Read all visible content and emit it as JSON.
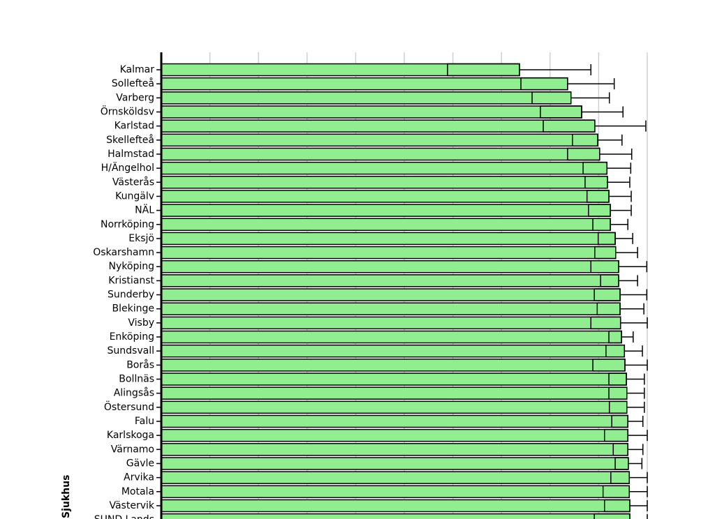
{
  "chart_data": {
    "type": "bar",
    "orientation": "horizontal",
    "y_label": "Sjukhus",
    "categories": [
      "Kalmar",
      "Sollefteå",
      "Varberg",
      "Örnsköldsv",
      "Karlstad",
      "Skellefteå",
      "Halmstad",
      "H/Ängelhol",
      "Västerås",
      "Kungälv",
      "NÄL",
      "Norrköping",
      "Eksjö",
      "Oskarshamn",
      "Nyköping",
      "Kristianst",
      "Sunderby",
      "Blekinge",
      "Visby",
      "Enköping",
      "Sundsvall",
      "Borås",
      "Bollnäs",
      "Alingsås",
      "Östersund",
      "Falu",
      "Karlskoga",
      "Värnamo",
      "Gävle",
      "Arvika",
      "Motala",
      "Västervik",
      "SUND Lands"
    ],
    "values": [
      73.7,
      83.6,
      84.3,
      86.5,
      89.2,
      89.8,
      90.2,
      91.7,
      91.8,
      92.1,
      92.4,
      92.4,
      93.4,
      93.5,
      94.1,
      94.1,
      94.4,
      94.4,
      94.5,
      94.7,
      95.3,
      95.4,
      95.7,
      95.8,
      95.8,
      96.0,
      96.0,
      96.0,
      96.1,
      96.3,
      96.3,
      96.4,
      96.4
    ],
    "ci_low": [
      58.9,
      74.0,
      76.3,
      78.0,
      78.6,
      84.6,
      83.6,
      86.8,
      87.2,
      87.6,
      87.9,
      88.8,
      89.9,
      89.2,
      88.4,
      90.4,
      89.1,
      89.7,
      88.4,
      92.1,
      91.5,
      88.8,
      92.1,
      92.1,
      92.2,
      92.7,
      91.2,
      93.0,
      93.4,
      92.5,
      90.9,
      91.2,
      89.1
    ],
    "ci_high": [
      88.4,
      93.2,
      92.2,
      95.0,
      99.7,
      94.8,
      96.8,
      96.6,
      96.4,
      96.7,
      96.7,
      96.0,
      97.0,
      98.0,
      99.9,
      98.0,
      99.9,
      99.3,
      100,
      97.1,
      99.0,
      100,
      99.4,
      99.4,
      99.4,
      99.1,
      100,
      99.1,
      98.9,
      100,
      100,
      100,
      100
    ],
    "color": "#90ee90",
    "xlim": [
      0,
      108
    ],
    "xticks": [
      10,
      20,
      30,
      40,
      50,
      60,
      70,
      80,
      90,
      100
    ],
    "grid": true
  }
}
